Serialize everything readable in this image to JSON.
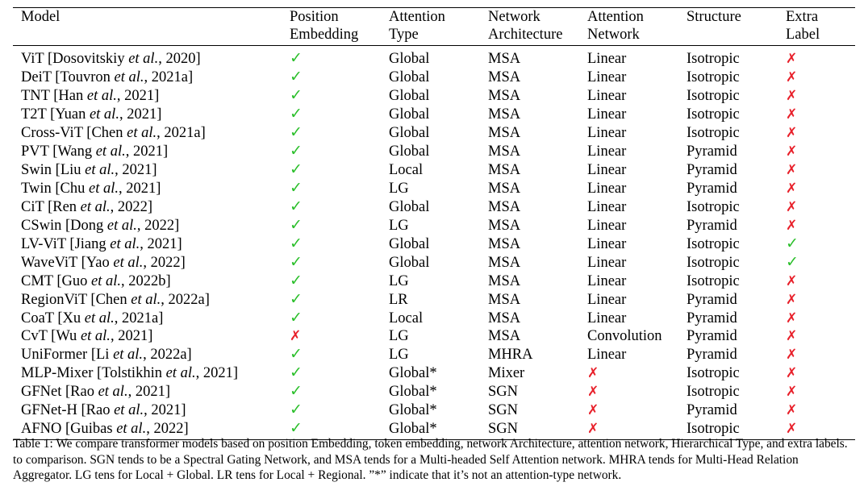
{
  "table": {
    "headers": [
      [
        "Model",
        ""
      ],
      [
        "Position",
        "Embedding"
      ],
      [
        "Attention",
        "Type"
      ],
      [
        "Network",
        "Architecture"
      ],
      [
        "Attention",
        "Network"
      ],
      [
        "Structure",
        ""
      ],
      [
        "Extra",
        "Label"
      ]
    ],
    "rows": [
      {
        "name": "ViT [Dosovitskiy ",
        "etal": "et al.",
        "year": ", 2020]",
        "pos": "check",
        "att": "Global",
        "net": "MSA",
        "an": "Linear",
        "st": "Isotropic",
        "extra": "cross"
      },
      {
        "name": "DeiT [Touvron ",
        "etal": "et al.",
        "year": ", 2021a]",
        "pos": "check",
        "att": "Global",
        "net": "MSA",
        "an": "Linear",
        "st": "Isotropic",
        "extra": "cross"
      },
      {
        "name": "TNT [Han ",
        "etal": "et al.",
        "year": ", 2021]",
        "pos": "check",
        "att": "Global",
        "net": "MSA",
        "an": "Linear",
        "st": "Isotropic",
        "extra": "cross"
      },
      {
        "name": "T2T [Yuan ",
        "etal": "et al.",
        "year": ", 2021]",
        "pos": "check",
        "att": "Global",
        "net": "MSA",
        "an": "Linear",
        "st": "Isotropic",
        "extra": "cross"
      },
      {
        "name": "Cross-ViT [Chen ",
        "etal": "et al.",
        "year": ", 2021a]",
        "pos": "check",
        "att": "Global",
        "net": "MSA",
        "an": "Linear",
        "st": "Isotropic",
        "extra": "cross"
      },
      {
        "name": "PVT [Wang ",
        "etal": "et al.",
        "year": ", 2021]",
        "pos": "check",
        "att": "Global",
        "net": "MSA",
        "an": "Linear",
        "st": "Pyramid",
        "extra": "cross"
      },
      {
        "name": "Swin [Liu ",
        "etal": "et al.",
        "year": ", 2021]",
        "pos": "check",
        "att": "Local",
        "net": "MSA",
        "an": "Linear",
        "st": "Pyramid",
        "extra": "cross"
      },
      {
        "name": "Twin [Chu ",
        "etal": "et al.",
        "year": ", 2021]",
        "pos": "check",
        "att": "LG",
        "net": "MSA",
        "an": "Linear",
        "st": "Pyramid",
        "extra": "cross"
      },
      {
        "name": "CiT [Ren ",
        "etal": "et al.",
        "year": ", 2022]",
        "pos": "check",
        "att": "Global",
        "net": "MSA",
        "an": "Linear",
        "st": "Isotropic",
        "extra": "cross"
      },
      {
        "name": "CSwin [Dong ",
        "etal": "et al.",
        "year": ", 2022]",
        "pos": "check",
        "att": "LG",
        "net": "MSA",
        "an": "Linear",
        "st": "Pyramid",
        "extra": "cross"
      },
      {
        "name": "LV-ViT [Jiang ",
        "etal": "et al.",
        "year": ", 2021]",
        "pos": "check",
        "att": "Global",
        "net": "MSA",
        "an": "Linear",
        "st": "Isotropic",
        "extra": "check"
      },
      {
        "name": "WaveViT [Yao ",
        "etal": "et al.",
        "year": ", 2022]",
        "pos": "check",
        "att": "Global",
        "net": "MSA",
        "an": "Linear",
        "st": "Isotropic",
        "extra": "check"
      },
      {
        "name": "CMT [Guo ",
        "etal": "et al.",
        "year": ", 2022b]",
        "pos": "check",
        "att": "LG",
        "net": "MSA",
        "an": "Linear",
        "st": "Isotropic",
        "extra": "cross"
      },
      {
        "name": "RegionViT [Chen ",
        "etal": "et al.",
        "year": ", 2022a]",
        "pos": "check",
        "att": "LR",
        "net": "MSA",
        "an": "Linear",
        "st": "Pyramid",
        "extra": "cross"
      },
      {
        "name": "CoaT [Xu ",
        "etal": "et al.",
        "year": ", 2021a]",
        "pos": "check",
        "att": "Local",
        "net": "MSA",
        "an": "Linear",
        "st": "Pyramid",
        "extra": "cross"
      },
      {
        "name": "CvT [Wu ",
        "etal": "et al.",
        "year": ", 2021]",
        "pos": "cross",
        "att": "LG",
        "net": "MSA",
        "an": "Convolution",
        "st": "Pyramid",
        "extra": "cross"
      },
      {
        "name": "UniFormer [Li ",
        "etal": "et al.",
        "year": ", 2022a]",
        "pos": "check",
        "att": "LG",
        "net": "MHRA",
        "an": "Linear",
        "st": "Pyramid",
        "extra": "cross"
      },
      {
        "name": "MLP-Mixer [Tolstikhin ",
        "etal": "et al.",
        "year": ", 2021]",
        "pos": "check",
        "att": "Global*",
        "net": "Mixer",
        "an": "cross",
        "st": "Isotropic",
        "extra": "cross"
      },
      {
        "name": "GFNet [Rao ",
        "etal": "et al.",
        "year": ", 2021]",
        "pos": "check",
        "att": "Global*",
        "net": "SGN",
        "an": "cross",
        "st": "Isotropic",
        "extra": "cross"
      },
      {
        "name": "GFNet-H [Rao ",
        "etal": "et al.",
        "year": ", 2021]",
        "pos": "check",
        "att": "Global*",
        "net": "SGN",
        "an": "cross",
        "st": "Pyramid",
        "extra": "cross"
      },
      {
        "name": "AFNO [Guibas ",
        "etal": "et al.",
        "year": ", 2022]",
        "pos": "check",
        "att": "Global*",
        "net": "SGN",
        "an": "cross",
        "st": "Isotropic",
        "extra": "cross"
      }
    ]
  },
  "symbols": {
    "check": "✓",
    "cross": "✗",
    "check_color": "#2bbf2b",
    "cross_color": "#e8202a"
  },
  "caption": "Table 1: We compare transformer models based on position Embedding, token embedding, network Architecture, attention network, Hierarchical Type, and extra labels. to comparison. SGN tends to be a Spectral Gating Network, and MSA tends for a Multi-headed Self Attention network. MHRA tends for Multi-Head Relation Aggregator. LG tens for Local + Global. LR tens for Local + Regional. ”*” indicate that it’s not an attention-type network."
}
